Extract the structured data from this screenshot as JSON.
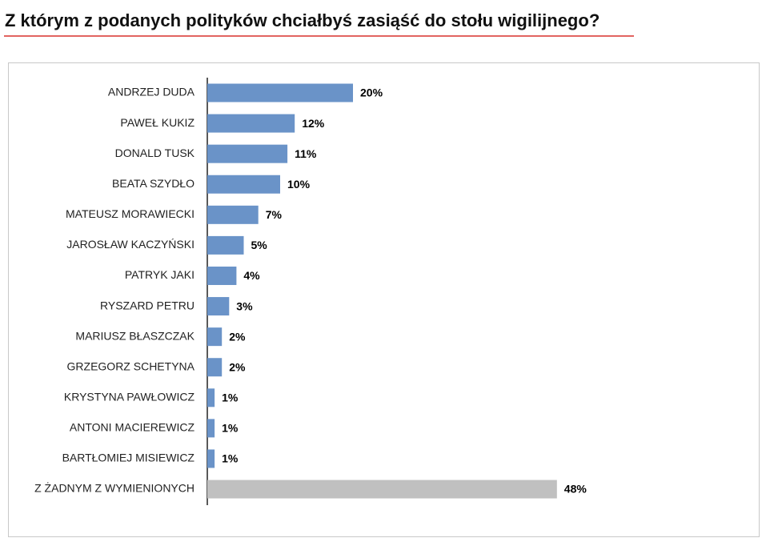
{
  "chart_data": {
    "type": "bar",
    "orientation": "horizontal",
    "title": "Z którym z podanych polityków chciałbyś zasiąść do stołu wigilijnego?",
    "categories": [
      "ANDRZEJ DUDA",
      "PAWEŁ KUKIZ",
      "DONALD TUSK",
      "BEATA SZYDŁO",
      "MATEUSZ MORAWIECKI",
      "JAROSŁAW KACZYŃSKI",
      "PATRYK JAKI",
      "RYSZARD PETRU",
      "MARIUSZ BŁASZCZAK",
      "GRZEGORZ SCHETYNA",
      "KRYSTYNA PAWŁOWICZ",
      "ANTONI MACIEREWICZ",
      "BARTŁOMIEJ MISIEWICZ",
      "Z ŻADNYM Z WYMIENIONYCH"
    ],
    "values": [
      20,
      12,
      11,
      10,
      7,
      5,
      4,
      3,
      2,
      2,
      1,
      1,
      1,
      48
    ],
    "value_labels": [
      "20%",
      "12%",
      "11%",
      "10%",
      "7%",
      "5%",
      "4%",
      "3%",
      "2%",
      "2%",
      "1%",
      "1%",
      "1%",
      "48%"
    ],
    "colors": [
      "#6a93c8",
      "#6a93c8",
      "#6a93c8",
      "#6a93c8",
      "#6a93c8",
      "#6a93c8",
      "#6a93c8",
      "#6a93c8",
      "#6a93c8",
      "#6a93c8",
      "#6a93c8",
      "#6a93c8",
      "#6a93c8",
      "#c0c0c0"
    ]
  }
}
